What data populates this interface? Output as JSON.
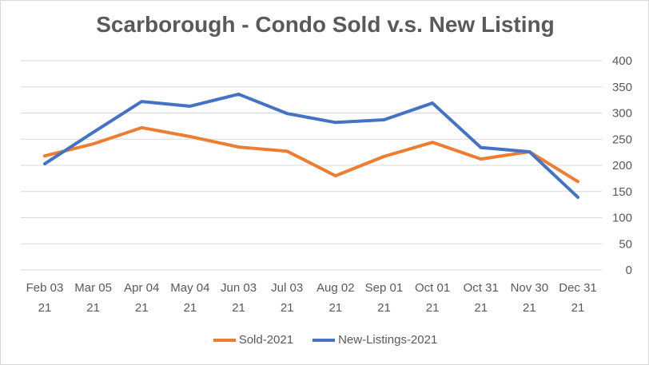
{
  "chart_data": {
    "type": "line",
    "title": "Scarborough - Condo Sold v.s. New Listing",
    "categories": [
      [
        "Feb 03",
        "21"
      ],
      [
        "Mar 05",
        "21"
      ],
      [
        "Apr 04",
        "21"
      ],
      [
        "May 04",
        "21"
      ],
      [
        "Jun 03",
        "21"
      ],
      [
        "Jul 03",
        "21"
      ],
      [
        "Aug 02",
        "21"
      ],
      [
        "Sep 01",
        "21"
      ],
      [
        "Oct 01",
        "21"
      ],
      [
        "Oct 31",
        "21"
      ],
      [
        "Nov 30",
        "21"
      ],
      [
        "Dec 31",
        "21"
      ]
    ],
    "ylim": [
      0,
      400
    ],
    "yticks": [
      0,
      50,
      100,
      150,
      200,
      250,
      300,
      350,
      400
    ],
    "y_axis_side": "right",
    "grid": true,
    "legend_placement": "bottom",
    "series": [
      {
        "name": "Sold-2021",
        "color": "#ED7D31",
        "values": [
          218,
          241,
          272,
          255,
          235,
          227,
          180,
          217,
          244,
          212,
          226,
          169
        ]
      },
      {
        "name": "New-Listings-2021",
        "color": "#4472C4",
        "values": [
          203,
          263,
          322,
          313,
          336,
          299,
          282,
          287,
          319,
          234,
          226,
          139
        ]
      }
    ]
  }
}
